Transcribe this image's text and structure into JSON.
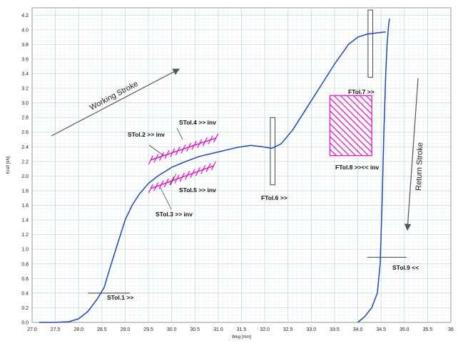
{
  "chart_data": {
    "type": "line",
    "xlabel": "Weg [mm]",
    "ylabel": "Kraft [kN]",
    "xlim": [
      27.0,
      36.0
    ],
    "ylim": [
      0.0,
      4.3
    ],
    "x_ticks": [
      "27.0",
      "27.5",
      "28.0",
      "28.5",
      "29.0",
      "29.5",
      "30.0",
      "30.5",
      "31.0",
      "31.5",
      "32.0",
      "32.5",
      "33.0",
      "33.5",
      "34.0",
      "34.5",
      "35.0",
      "35.5",
      "36"
    ],
    "y_ticks": [
      "0.0",
      "0.2",
      "0.4",
      "0.6",
      "0.8",
      "1.0",
      "1.2",
      "1.4",
      "1.6",
      "1.8",
      "2.0",
      "2.2",
      "2.4",
      "2.6",
      "2.8",
      "3.0",
      "3.2",
      "3.4",
      "3.6",
      "3.8",
      "4.0",
      "4.2"
    ],
    "grid": true,
    "colors": {
      "curve": "#2244bb",
      "hatch": "#e020c8",
      "grid": "#bcd8d0",
      "arrow": "#555555"
    },
    "series": [
      {
        "x": [
          27.15,
          27.5,
          27.8,
          28.0,
          28.2,
          28.4,
          28.55,
          28.7,
          28.85,
          29.0,
          29.15,
          29.3,
          29.5,
          29.7,
          30.0,
          30.3,
          30.6,
          31.0,
          31.4,
          31.7,
          31.95,
          32.15,
          32.35,
          32.6,
          32.9,
          33.2,
          33.5,
          33.8,
          34.0,
          34.2,
          34.45,
          34.6
        ],
        "y": [
          0.0,
          0.0,
          0.01,
          0.05,
          0.15,
          0.32,
          0.48,
          0.8,
          1.1,
          1.4,
          1.6,
          1.75,
          1.9,
          2.0,
          2.12,
          2.2,
          2.27,
          2.33,
          2.39,
          2.42,
          2.4,
          2.38,
          2.44,
          2.63,
          2.93,
          3.23,
          3.53,
          3.8,
          3.9,
          3.94,
          3.96,
          3.97
        ]
      },
      {
        "x": [
          34.0,
          34.15,
          34.3,
          34.42,
          34.48,
          34.52,
          34.56,
          34.6,
          34.63,
          34.66,
          34.68
        ],
        "y": [
          0.0,
          0.08,
          0.2,
          0.4,
          0.8,
          1.6,
          2.6,
          3.4,
          3.8,
          4.05,
          4.15
        ]
      }
    ],
    "annotations": {
      "working_stroke": "Working Stroke",
      "return_stroke": "Return Stroke",
      "stol1": "STol.1 >>",
      "stol2": "STol.2 >> inv",
      "stol3": "STol.3 >> inv",
      "stol4": "STol.4 >> inv",
      "stol5": "STol.5 >> inv",
      "ftol6": "FTol.6 >>",
      "ftol7": "FTol.7 >>",
      "ftol8": "FTol.8 >><< inv",
      "stol9": "STol.9 <<"
    },
    "tolerances": {
      "stol1_line": {
        "x": [
          28.2,
          29.1
        ],
        "y": 0.4
      },
      "stol9_line": {
        "x": [
          34.2,
          35.05
        ],
        "y": 0.89
      },
      "ftol6_box": {
        "x": [
          32.12,
          32.22
        ],
        "y": [
          1.88,
          2.8
        ]
      },
      "ftol7_box": {
        "x": [
          34.22,
          34.32
        ],
        "y": [
          3.35,
          4.27
        ]
      },
      "ftol8_box": {
        "x": [
          33.4,
          34.3
        ],
        "y": [
          2.28,
          3.1
        ]
      },
      "stol_upper_band": {
        "x": [
          29.55,
          30.95
        ],
        "y_start": 2.22,
        "y_end": 2.52
      },
      "stol_lower_band": {
        "x": [
          29.55,
          30.9
        ],
        "y_start": 1.83,
        "y_end": 2.14
      }
    }
  }
}
